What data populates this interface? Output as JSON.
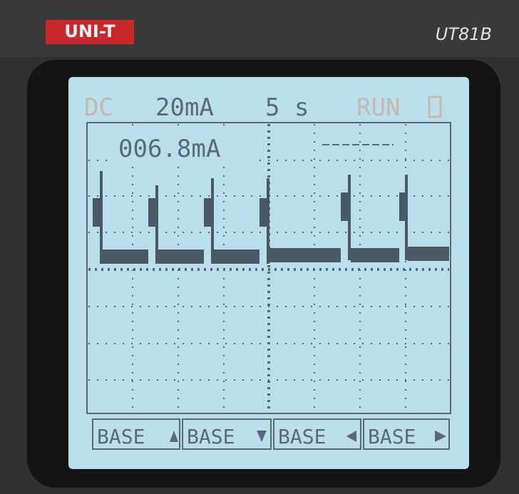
{
  "device": {
    "brand": "UNI-T",
    "model": "UT81B"
  },
  "status": {
    "coupling": "DC",
    "range": "20mA",
    "timebase": "5 s",
    "state": "RUN"
  },
  "reading": "006.8mA",
  "softkeys": [
    "BASE",
    "BASE",
    "BASE",
    "BASE"
  ]
}
